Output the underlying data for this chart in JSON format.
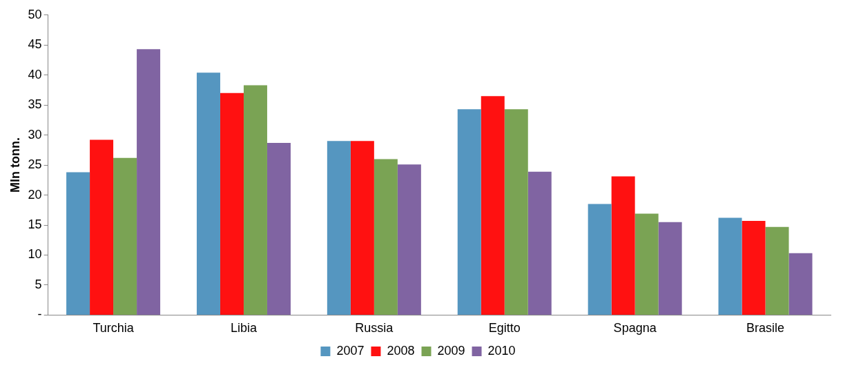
{
  "chart_data": {
    "type": "bar",
    "ylabel": "Mln tonn.",
    "categories": [
      "Turchia",
      "Libia",
      "Russia",
      "Egitto",
      "Spagna",
      "Brasile"
    ],
    "series": [
      {
        "name": "2007",
        "color": "#5596c0",
        "values": [
          23.8,
          40.4,
          29.0,
          34.3,
          18.5,
          16.2
        ]
      },
      {
        "name": "2008",
        "color": "#ff1111",
        "values": [
          29.2,
          37.0,
          29.0,
          36.5,
          23.1,
          15.7
        ]
      },
      {
        "name": "2009",
        "color": "#7aa354",
        "values": [
          26.2,
          38.3,
          26.0,
          34.3,
          16.9,
          14.7
        ]
      },
      {
        "name": "2010",
        "color": "#8064a2",
        "values": [
          44.3,
          28.7,
          25.1,
          23.9,
          15.5,
          10.3
        ]
      }
    ],
    "ylim": [
      0,
      50
    ],
    "yticks": [
      {
        "value": 0,
        "label": "-"
      },
      5,
      10,
      15,
      20,
      25,
      30,
      35,
      40,
      45,
      50
    ],
    "grid": false,
    "legend": "bottom"
  }
}
